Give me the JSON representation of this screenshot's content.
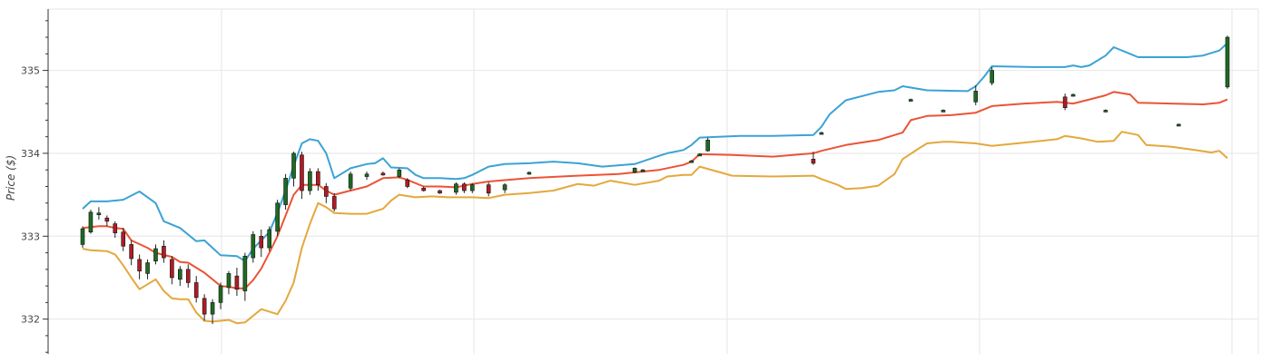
{
  "chart_data": {
    "type": "line",
    "title": "",
    "xlabel": "",
    "ylabel": "Price ($)",
    "ylim": [
      331.58,
      335.74
    ],
    "yticks": [
      332,
      333,
      334,
      335
    ],
    "grid": true,
    "legend": "none",
    "x_count": 140,
    "series": [
      {
        "name": "",
        "color": "#3ba3d4",
        "points": [
          [
            0,
            333.33
          ],
          [
            1,
            333.42
          ],
          [
            3,
            333.42
          ],
          [
            5,
            333.44
          ],
          [
            7,
            333.54
          ],
          [
            9,
            333.4
          ],
          [
            10,
            333.18
          ],
          [
            12,
            333.1
          ],
          [
            14,
            332.94
          ],
          [
            15,
            332.95
          ],
          [
            16,
            332.86
          ],
          [
            17,
            332.77
          ],
          [
            19,
            332.76
          ],
          [
            20,
            332.7
          ],
          [
            21,
            332.85
          ],
          [
            22,
            332.95
          ],
          [
            23,
            333.05
          ],
          [
            24,
            333.28
          ],
          [
            25,
            333.55
          ],
          [
            26,
            333.85
          ],
          [
            27,
            334.12
          ],
          [
            28,
            334.17
          ],
          [
            29,
            334.15
          ],
          [
            30,
            334.0
          ],
          [
            31,
            333.7
          ],
          [
            33,
            333.82
          ],
          [
            35,
            333.87
          ],
          [
            36,
            333.88
          ],
          [
            37,
            333.94
          ],
          [
            38,
            333.83
          ],
          [
            40,
            333.82
          ],
          [
            41,
            333.74
          ],
          [
            42,
            333.7
          ],
          [
            44,
            333.7
          ],
          [
            46,
            333.69
          ],
          [
            47,
            333.7
          ],
          [
            48,
            333.74
          ],
          [
            50,
            333.84
          ],
          [
            52,
            333.87
          ],
          [
            55,
            333.88
          ],
          [
            58,
            333.9
          ],
          [
            61,
            333.88
          ],
          [
            64,
            333.84
          ],
          [
            68,
            333.87
          ],
          [
            71,
            333.97
          ],
          [
            72,
            334.0
          ],
          [
            74,
            334.04
          ],
          [
            75,
            334.1
          ],
          [
            76,
            334.19
          ],
          [
            81,
            334.21
          ],
          [
            85,
            334.21
          ],
          [
            90,
            334.22
          ],
          [
            91,
            334.32
          ],
          [
            92,
            334.47
          ],
          [
            94,
            334.64
          ],
          [
            98,
            334.74
          ],
          [
            100,
            334.76
          ],
          [
            101,
            334.81
          ],
          [
            104,
            334.76
          ],
          [
            109,
            334.75
          ],
          [
            110,
            334.81
          ],
          [
            111,
            334.92
          ],
          [
            112,
            335.05
          ],
          [
            117,
            335.04
          ],
          [
            121,
            335.04
          ],
          [
            122,
            335.06
          ],
          [
            123,
            335.04
          ],
          [
            124,
            335.06
          ],
          [
            126,
            335.18
          ],
          [
            127,
            335.28
          ],
          [
            129,
            335.2
          ],
          [
            130,
            335.16
          ],
          [
            133,
            335.16
          ],
          [
            136,
            335.16
          ],
          [
            138,
            335.18
          ],
          [
            140,
            335.24
          ],
          [
            141,
            335.33
          ]
        ]
      },
      {
        "name": "",
        "color": "#ea5436",
        "points": [
          [
            0,
            333.1
          ],
          [
            2,
            333.12
          ],
          [
            3,
            333.12
          ],
          [
            4,
            333.1
          ],
          [
            5,
            333.09
          ],
          [
            6,
            332.95
          ],
          [
            8,
            332.86
          ],
          [
            9,
            332.8
          ],
          [
            11,
            332.75
          ],
          [
            12,
            332.69
          ],
          [
            13,
            332.68
          ],
          [
            14,
            332.62
          ],
          [
            15,
            332.56
          ],
          [
            16,
            332.48
          ],
          [
            17,
            332.4
          ],
          [
            18,
            332.39
          ],
          [
            19,
            332.37
          ],
          [
            20,
            332.37
          ],
          [
            21,
            332.47
          ],
          [
            22,
            332.61
          ],
          [
            23,
            332.8
          ],
          [
            24,
            333.0
          ],
          [
            25,
            333.25
          ],
          [
            26,
            333.5
          ],
          [
            27,
            333.62
          ],
          [
            29,
            333.62
          ],
          [
            30,
            333.55
          ],
          [
            31,
            333.5
          ],
          [
            33,
            333.55
          ],
          [
            35,
            333.6
          ],
          [
            37,
            333.7
          ],
          [
            39,
            333.71
          ],
          [
            40,
            333.68
          ],
          [
            42,
            333.6
          ],
          [
            44,
            333.6
          ],
          [
            46,
            333.59
          ],
          [
            48,
            333.63
          ],
          [
            50,
            333.66
          ],
          [
            55,
            333.7
          ],
          [
            61,
            333.73
          ],
          [
            66,
            333.75
          ],
          [
            71,
            333.8
          ],
          [
            74,
            333.86
          ],
          [
            75,
            333.9
          ],
          [
            76,
            333.99
          ],
          [
            80,
            333.98
          ],
          [
            85,
            333.96
          ],
          [
            90,
            334.0
          ],
          [
            91,
            334.03
          ],
          [
            94,
            334.1
          ],
          [
            98,
            334.16
          ],
          [
            101,
            334.25
          ],
          [
            102,
            334.4
          ],
          [
            104,
            334.45
          ],
          [
            107,
            334.46
          ],
          [
            110,
            334.49
          ],
          [
            112,
            334.57
          ],
          [
            116,
            334.6
          ],
          [
            120,
            334.62
          ],
          [
            122,
            334.6
          ],
          [
            124,
            334.65
          ],
          [
            126,
            334.7
          ],
          [
            127,
            334.74
          ],
          [
            129,
            334.71
          ],
          [
            130,
            334.61
          ],
          [
            134,
            334.6
          ],
          [
            138,
            334.59
          ],
          [
            140,
            334.61
          ],
          [
            141,
            334.65
          ]
        ]
      },
      {
        "name": "",
        "color": "#e4a83c",
        "points": [
          [
            0,
            332.85
          ],
          [
            1,
            332.83
          ],
          [
            3,
            332.82
          ],
          [
            4,
            332.78
          ],
          [
            5,
            332.65
          ],
          [
            6,
            332.5
          ],
          [
            7,
            332.36
          ],
          [
            8,
            332.42
          ],
          [
            9,
            332.48
          ],
          [
            10,
            332.34
          ],
          [
            11,
            332.25
          ],
          [
            12,
            332.24
          ],
          [
            13,
            332.24
          ],
          [
            14,
            332.08
          ],
          [
            15,
            331.98
          ],
          [
            16,
            331.97
          ],
          [
            17,
            331.98
          ],
          [
            18,
            331.99
          ],
          [
            19,
            331.95
          ],
          [
            20,
            331.96
          ],
          [
            21,
            332.04
          ],
          [
            22,
            332.12
          ],
          [
            23,
            332.09
          ],
          [
            24,
            332.06
          ],
          [
            25,
            332.22
          ],
          [
            26,
            332.44
          ],
          [
            27,
            332.86
          ],
          [
            28,
            333.15
          ],
          [
            29,
            333.4
          ],
          [
            30,
            333.35
          ],
          [
            31,
            333.28
          ],
          [
            33,
            333.27
          ],
          [
            35,
            333.27
          ],
          [
            37,
            333.33
          ],
          [
            38,
            333.43
          ],
          [
            39,
            333.5
          ],
          [
            41,
            333.47
          ],
          [
            43,
            333.48
          ],
          [
            45,
            333.47
          ],
          [
            48,
            333.47
          ],
          [
            50,
            333.46
          ],
          [
            52,
            333.5
          ],
          [
            55,
            333.52
          ],
          [
            58,
            333.55
          ],
          [
            61,
            333.63
          ],
          [
            63,
            333.61
          ],
          [
            65,
            333.67
          ],
          [
            68,
            333.62
          ],
          [
            71,
            333.67
          ],
          [
            72,
            333.72
          ],
          [
            74,
            333.74
          ],
          [
            75,
            333.74
          ],
          [
            76,
            333.84
          ],
          [
            80,
            333.73
          ],
          [
            85,
            333.72
          ],
          [
            90,
            333.73
          ],
          [
            91,
            333.69
          ],
          [
            93,
            333.62
          ],
          [
            94,
            333.57
          ],
          [
            96,
            333.58
          ],
          [
            98,
            333.61
          ],
          [
            100,
            333.75
          ],
          [
            101,
            333.93
          ],
          [
            103,
            334.06
          ],
          [
            104,
            334.12
          ],
          [
            106,
            334.14
          ],
          [
            107,
            334.14
          ],
          [
            110,
            334.12
          ],
          [
            112,
            334.09
          ],
          [
            117,
            334.14
          ],
          [
            120,
            334.17
          ],
          [
            121,
            334.21
          ],
          [
            123,
            334.18
          ],
          [
            125,
            334.14
          ],
          [
            127,
            334.15
          ],
          [
            128,
            334.26
          ],
          [
            130,
            334.22
          ],
          [
            131,
            334.1
          ],
          [
            134,
            334.08
          ],
          [
            137,
            334.04
          ],
          [
            139,
            334.01
          ],
          [
            140,
            334.03
          ],
          [
            141,
            333.94
          ]
        ]
      }
    ],
    "candles": [
      [
        0,
        332.9,
        333.09,
        332.86,
        333.12
      ],
      [
        1,
        333.05,
        333.29,
        333.03,
        333.32
      ],
      [
        2,
        333.28,
        333.28,
        333.2,
        333.35
      ],
      [
        3,
        333.22,
        333.18,
        333.12,
        333.25
      ],
      [
        4,
        333.15,
        333.04,
        332.98,
        333.18
      ],
      [
        5,
        333.05,
        332.88,
        332.82,
        333.1
      ],
      [
        6,
        332.9,
        332.73,
        332.65,
        332.95
      ],
      [
        7,
        332.72,
        332.58,
        332.48,
        332.78
      ],
      [
        8,
        332.55,
        332.68,
        332.48,
        332.72
      ],
      [
        9,
        332.7,
        332.85,
        332.66,
        332.9
      ],
      [
        10,
        332.88,
        332.74,
        332.68,
        332.95
      ],
      [
        11,
        332.72,
        332.5,
        332.42,
        332.76
      ],
      [
        12,
        332.48,
        332.6,
        332.4,
        332.64
      ],
      [
        13,
        332.6,
        332.44,
        332.38,
        332.66
      ],
      [
        14,
        332.44,
        332.26,
        332.2,
        332.52
      ],
      [
        15,
        332.25,
        332.06,
        331.98,
        332.3
      ],
      [
        16,
        332.06,
        332.2,
        331.94,
        332.24
      ],
      [
        17,
        332.2,
        332.4,
        332.12,
        332.44
      ],
      [
        18,
        332.38,
        332.55,
        332.3,
        332.58
      ],
      [
        19,
        332.52,
        332.36,
        332.28,
        332.62
      ],
      [
        20,
        332.34,
        332.76,
        332.22,
        332.8
      ],
      [
        21,
        332.74,
        333.02,
        332.68,
        333.06
      ],
      [
        22,
        333.0,
        332.86,
        332.75,
        333.08
      ],
      [
        23,
        332.86,
        333.08,
        332.82,
        333.12
      ],
      [
        24,
        333.06,
        333.4,
        333.0,
        333.44
      ],
      [
        25,
        333.38,
        333.7,
        333.32,
        333.75
      ],
      [
        26,
        333.7,
        334.0,
        333.6,
        334.02
      ],
      [
        27,
        333.98,
        333.55,
        333.45,
        334.02
      ],
      [
        28,
        333.55,
        333.78,
        333.5,
        333.82
      ],
      [
        29,
        333.78,
        333.62,
        333.55,
        333.82
      ],
      [
        30,
        333.6,
        333.48,
        333.4,
        333.64
      ],
      [
        31,
        333.48,
        333.33,
        333.3,
        333.52
      ],
      [
        33,
        333.58,
        333.75,
        333.55,
        333.78
      ],
      [
        35,
        333.72,
        333.75,
        333.68,
        333.78
      ],
      [
        37,
        333.76,
        333.75,
        333.73,
        333.78
      ],
      [
        39,
        333.72,
        333.8,
        333.7,
        333.82
      ],
      [
        40,
        333.68,
        333.6,
        333.58,
        333.7
      ],
      [
        42,
        333.58,
        333.55,
        333.54,
        333.6
      ],
      [
        44,
        333.55,
        333.52,
        333.51,
        333.56
      ],
      [
        46,
        333.53,
        333.63,
        333.5,
        333.65
      ],
      [
        47,
        333.63,
        333.55,
        333.52,
        333.65
      ],
      [
        48,
        333.55,
        333.62,
        333.52,
        333.64
      ],
      [
        50,
        333.62,
        333.52,
        333.48,
        333.65
      ],
      [
        52,
        333.56,
        333.62,
        333.52,
        333.64
      ],
      [
        55,
        333.75,
        333.77,
        333.74,
        333.78
      ],
      [
        68,
        333.77,
        333.82,
        333.76,
        333.83
      ],
      [
        69,
        333.79,
        333.8,
        333.79,
        333.81
      ],
      [
        75,
        333.9,
        333.91,
        333.89,
        333.92
      ],
      [
        76,
        333.98,
        333.99,
        333.97,
        334.0
      ],
      [
        77,
        334.03,
        334.16,
        334.02,
        334.19
      ],
      [
        90,
        333.93,
        333.88,
        333.86,
        334.02
      ],
      [
        91,
        334.24,
        334.25,
        334.23,
        334.26
      ],
      [
        102,
        334.64,
        334.65,
        334.63,
        334.66
      ],
      [
        106,
        334.51,
        334.52,
        334.5,
        334.53
      ],
      [
        110,
        334.62,
        334.75,
        334.58,
        334.82
      ],
      [
        112,
        334.85,
        335.0,
        334.82,
        335.04
      ],
      [
        121,
        334.68,
        334.55,
        334.52,
        334.72
      ],
      [
        122,
        334.7,
        334.71,
        334.7,
        334.72
      ],
      [
        126,
        334.51,
        334.52,
        334.5,
        334.53
      ],
      [
        135,
        334.34,
        334.35,
        334.33,
        334.36
      ],
      [
        141,
        334.8,
        335.4,
        334.78,
        335.42
      ]
    ]
  }
}
